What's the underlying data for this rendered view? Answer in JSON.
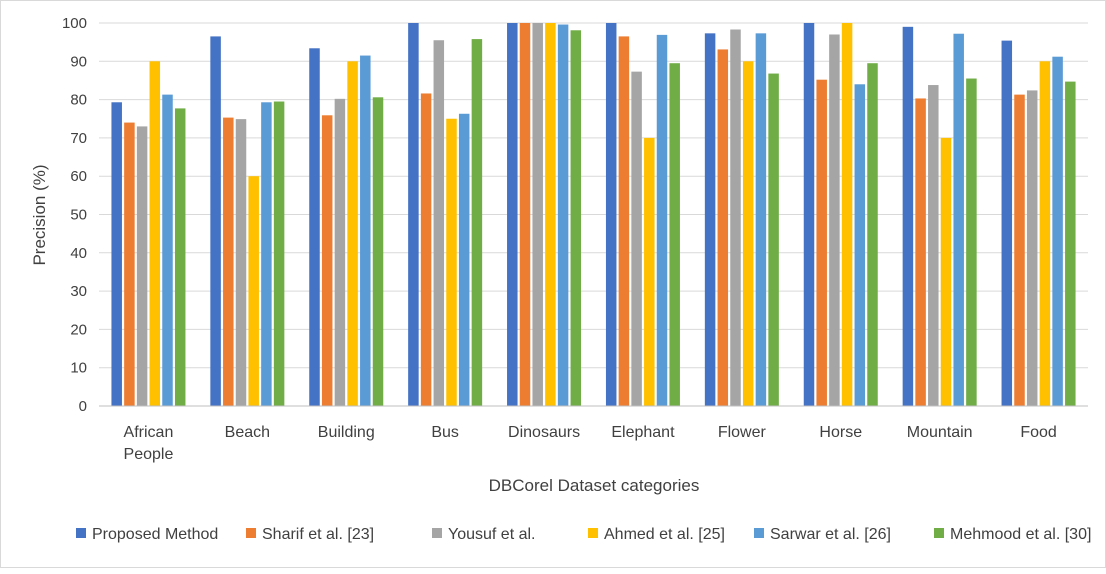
{
  "chart_data": {
    "type": "bar",
    "title": "",
    "xlabel": "DBCorel Dataset categories",
    "ylabel": "Precision (%)",
    "ylim": [
      0,
      100
    ],
    "ytick_step": 10,
    "grid": true,
    "legend_position": "bottom",
    "categories": [
      [
        "African",
        "People"
      ],
      [
        "Beach"
      ],
      [
        "Building"
      ],
      [
        "Bus"
      ],
      [
        "Dinosaurs"
      ],
      [
        "Elephant"
      ],
      [
        "Flower"
      ],
      [
        "Horse"
      ],
      [
        "Mountain"
      ],
      [
        "Food"
      ]
    ],
    "series": [
      {
        "name": "Proposed Method",
        "color": "#4472c4",
        "values": [
          79.3,
          96.5,
          93.4,
          100,
          100,
          100,
          97.3,
          100,
          99,
          95.4
        ]
      },
      {
        "name": "Sharif et al. [23]",
        "color": "#ed7d31",
        "values": [
          74,
          75.3,
          75.9,
          81.6,
          100,
          96.5,
          93.1,
          85.2,
          80.3,
          81.3
        ]
      },
      {
        "name": "Yousuf et al.",
        "color": "#a5a5a5",
        "values": [
          73,
          74.9,
          80.2,
          95.5,
          100,
          87.3,
          98.3,
          97,
          83.8,
          82.4
        ]
      },
      {
        "name": "Ahmed et al. [25]",
        "color": "#ffc000",
        "values": [
          90,
          60,
          90,
          75,
          100,
          70,
          90,
          100,
          70,
          90
        ]
      },
      {
        "name": "Sarwar et al. [26]",
        "color": "#5b9bd5",
        "values": [
          81.3,
          79.3,
          91.5,
          76.3,
          99.6,
          96.9,
          97.3,
          84,
          97.2,
          91.2
        ]
      },
      {
        "name": "Mehmood et al. [30]",
        "color": "#70ad47",
        "values": [
          77.7,
          79.5,
          80.6,
          95.8,
          98.1,
          89.5,
          86.8,
          89.5,
          85.5,
          84.7
        ]
      }
    ]
  }
}
